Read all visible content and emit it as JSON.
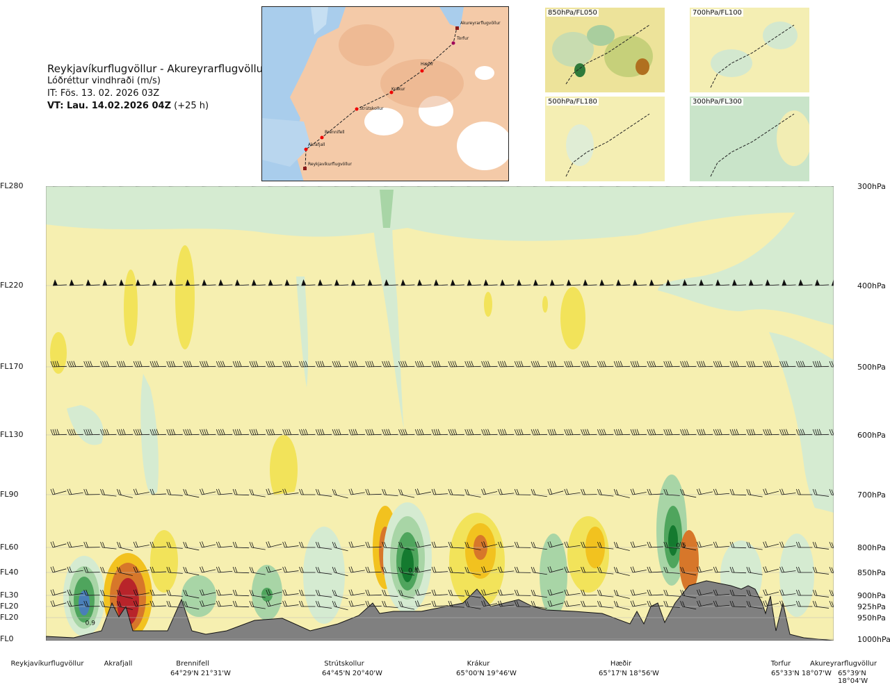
{
  "header": {
    "route": "Reykjavíkurflugvöllur - Akureyrarflugvöllur",
    "subtitle": "Lóðréttur vindhraði (m/s)",
    "issue_time": "IT: Fös. 13. 02. 2026 03Z",
    "valid_time_bold": "VT: Lau. 14.02.2026 04Z",
    "valid_time_offset": "(+25 h)"
  },
  "map": {
    "waypoints": [
      "Akureyrarflugvöllur",
      "Torfur",
      "Hæðir",
      "Krákur",
      "Strútskollur",
      "Brennifell",
      "Akrafjall",
      "Reykjavíkurflugvöllur"
    ]
  },
  "thumbnails": [
    {
      "label": "850hPa/FL050"
    },
    {
      "label": "700hPa/FL100"
    },
    {
      "label": "500hPa/FL180"
    },
    {
      "label": "300hPa/FL300"
    }
  ],
  "chart_data": {
    "type": "heatmap",
    "title": "Lóðréttur vindhraði (m/s)",
    "x_axis": "distance along route Reykjavíkurflugvöllur → Akureyrarflugvöllur",
    "levels": [
      {
        "fl": "FL280",
        "hpa": "300hPa",
        "pressure": 300
      },
      {
        "fl": "FL220",
        "hpa": "400hPa",
        "pressure": 400
      },
      {
        "fl": "FL170",
        "hpa": "500hPa",
        "pressure": 500
      },
      {
        "fl": "FL130",
        "hpa": "600hPa",
        "pressure": 600
      },
      {
        "fl": "FL90",
        "hpa": "700hPa",
        "pressure": 700
      },
      {
        "fl": "FL60",
        "hpa": "800hPa",
        "pressure": 800
      },
      {
        "fl": "FL40",
        "hpa": "850hPa",
        "pressure": 850
      },
      {
        "fl": "FL30",
        "hpa": "900hPa",
        "pressure": 900
      },
      {
        "fl": "FL20",
        "hpa": "925hPa",
        "pressure": 925
      },
      {
        "fl": "FL20",
        "hpa": "950hPa",
        "pressure": 950
      },
      {
        "fl": "FL0",
        "hpa": "1000hPa",
        "pressure": 1000
      }
    ],
    "locations": [
      {
        "name": "Reykjavíkurflugvöllur",
        "coord": ""
      },
      {
        "name": "Akrafjall",
        "coord": ""
      },
      {
        "name": "Brennifell",
        "coord": "64°29'N 21°31'W"
      },
      {
        "name": "Strútskollur",
        "coord": "64°45'N 20°40'W"
      },
      {
        "name": "Krákur",
        "coord": "65°00'N 19°46'W"
      },
      {
        "name": "Hæðir",
        "coord": "65°17'N 18°56'W"
      },
      {
        "name": "Torfur",
        "coord": "65°33'N 18°07'W"
      },
      {
        "name": "Akureyrarflugvöllur",
        "coord": "65°39'N 18°04'W"
      }
    ],
    "annotations": [
      {
        "text": "0.9",
        "location_fraction": 0.05,
        "pressure": 955
      },
      {
        "text": "0.8",
        "location_fraction": 0.46,
        "pressure": 850
      },
      {
        "text": "0.5",
        "location_fraction": 0.8,
        "pressure": 800
      }
    ],
    "colorscale": {
      "strong_up": "#b8242a",
      "up_2": "#d7772a",
      "up_1": "#f2c21f",
      "weak_up": "#f7ec91",
      "neutral": "#f6efb0",
      "weak_down": "#d5ebd1",
      "down_1": "#a8d5a6",
      "down_2": "#4fa55d",
      "strong_down": "#147a2f",
      "extreme_down": "#4a7fb8",
      "terrain": "#808080"
    }
  }
}
